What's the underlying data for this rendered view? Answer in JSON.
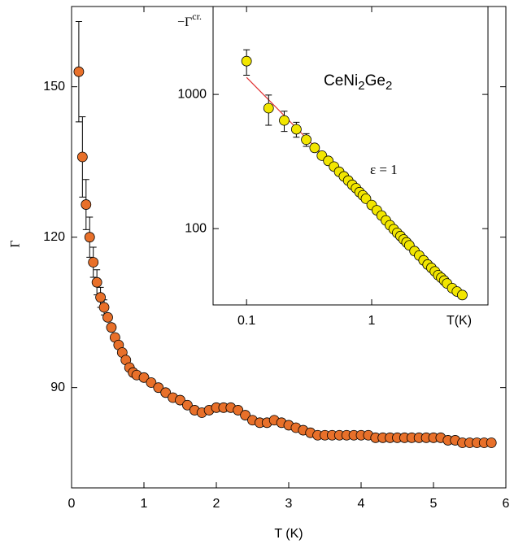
{
  "chart_data": [
    {
      "type": "scatter",
      "xlabel": "T (K)",
      "ylabel": "Γ",
      "xlim": [
        0,
        6
      ],
      "ylim": [
        70,
        166
      ],
      "xticks": [
        0,
        1,
        2,
        3,
        4,
        5,
        6
      ],
      "yticks": [
        90,
        120,
        150
      ],
      "color": "#e8702a",
      "x": [
        0.1,
        0.15,
        0.2,
        0.25,
        0.3,
        0.35,
        0.4,
        0.45,
        0.5,
        0.55,
        0.6,
        0.65,
        0.7,
        0.75,
        0.8,
        0.85,
        0.9,
        1.0,
        1.1,
        1.2,
        1.3,
        1.4,
        1.5,
        1.6,
        1.7,
        1.8,
        1.9,
        2.0,
        2.1,
        2.2,
        2.3,
        2.4,
        2.5,
        2.6,
        2.7,
        2.8,
        2.9,
        3.0,
        3.1,
        3.2,
        3.3,
        3.4,
        3.5,
        3.6,
        3.7,
        3.8,
        3.9,
        4.0,
        4.1,
        4.2,
        4.3,
        4.4,
        4.5,
        4.6,
        4.7,
        4.8,
        4.9,
        5.0,
        5.1,
        5.2,
        5.3,
        5.4,
        5.5,
        5.6,
        5.7,
        5.8
      ],
      "values": [
        153,
        136,
        126.5,
        120,
        115,
        111,
        108,
        106,
        104,
        102,
        100,
        98.5,
        97,
        95.5,
        94,
        93,
        92.5,
        92,
        91,
        90,
        89,
        88,
        87.5,
        86.5,
        85.5,
        85,
        85.5,
        86,
        86,
        86,
        85.5,
        84.5,
        83.5,
        83,
        83,
        83.5,
        83,
        82.5,
        82,
        81.5,
        81,
        80.5,
        80.5,
        80.5,
        80.5,
        80.5,
        80.5,
        80.5,
        80.5,
        80,
        80,
        80,
        80,
        80,
        80,
        80,
        80,
        80,
        80,
        79.5,
        79.5,
        79,
        79,
        79,
        79,
        79
      ],
      "errors": [
        10,
        8,
        5,
        4,
        3,
        2.5,
        2,
        1.5,
        null,
        null,
        null,
        null,
        null,
        null,
        null,
        null,
        null,
        null,
        null,
        null,
        null,
        null,
        null,
        null,
        null,
        null,
        null,
        null,
        null,
        null,
        null,
        null,
        null,
        null,
        null,
        null,
        null,
        null,
        null,
        null,
        null,
        null,
        null,
        null,
        null,
        null,
        null,
        null,
        null,
        null,
        null,
        null,
        null,
        null,
        null,
        null,
        null,
        null,
        null,
        null,
        null,
        null,
        null,
        null,
        null,
        null
      ]
    },
    {
      "type": "scatter",
      "log_x": true,
      "log_y": true,
      "xlabel": "T(K)",
      "ylabel": "−Γ",
      "ylabel_superscript": "cr.",
      "annotation": "CeNi2Ge2",
      "fit_label": "ε = 1",
      "xlim": [
        0.054,
        8.5
      ],
      "ylim": [
        27,
        4520
      ],
      "xticks": [
        0.1,
        1
      ],
      "yticks": [
        100,
        1000
      ],
      "color": "#f2e600",
      "fit_color": "#e03030",
      "x": [
        0.1,
        0.15,
        0.2,
        0.25,
        0.3,
        0.35,
        0.4,
        0.45,
        0.5,
        0.55,
        0.6,
        0.65,
        0.7,
        0.75,
        0.8,
        0.85,
        0.9,
        1.0,
        1.1,
        1.2,
        1.3,
        1.4,
        1.5,
        1.6,
        1.7,
        1.8,
        1.9,
        2.0,
        2.2,
        2.4,
        2.6,
        2.8,
        3.0,
        3.2,
        3.4,
        3.6,
        3.8,
        4.0,
        4.4,
        4.8,
        5.3
      ],
      "values": [
        1770,
        790,
        640,
        550,
        460,
        400,
        350,
        320,
        290,
        265,
        245,
        228,
        212,
        200,
        187,
        177,
        167,
        150,
        137,
        125,
        115,
        106,
        99,
        93,
        88,
        83,
        79,
        75,
        68,
        63,
        58,
        54,
        51,
        48,
        45,
        43,
        41,
        39,
        36,
        34,
        32
      ],
      "errors": [
        380,
        200,
        110,
        70,
        50,
        null,
        null,
        null,
        null,
        null,
        null,
        null,
        null,
        null,
        null,
        null,
        null,
        null,
        null,
        null,
        null,
        null,
        null,
        null,
        null,
        null,
        null,
        null,
        null,
        null,
        null,
        null,
        null,
        null,
        null,
        null,
        null,
        null,
        null,
        null,
        null
      ],
      "fit_x": [
        0.1,
        5.5
      ],
      "fit_values": [
        1340,
        30
      ]
    }
  ]
}
